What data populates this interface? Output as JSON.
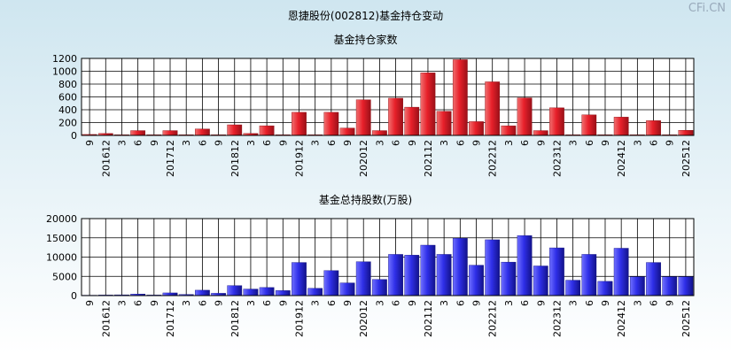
{
  "page_title": "恩捷股份(002812)基金持仓变动",
  "watermark": "CFi.CN",
  "colors": {
    "red_bar": "#e8202a",
    "blue_bar": "#2f2fe8",
    "grid": "#000000"
  },
  "chart_data": [
    {
      "type": "bar",
      "title": "基金持仓家数",
      "ylim": [
        0,
        1200
      ],
      "yticks": [
        0,
        200,
        400,
        600,
        800,
        1000,
        1200
      ],
      "grid": true,
      "categories": [
        "201609",
        "201612",
        "201703",
        "201706",
        "201709",
        "201712",
        "201803",
        "201806",
        "201809",
        "201812",
        "201903",
        "201906",
        "201909",
        "201912",
        "202003",
        "202006",
        "202009",
        "202012",
        "202103",
        "202106",
        "202109",
        "202112",
        "202203",
        "202206",
        "202209",
        "202212",
        "202303",
        "202306",
        "202309",
        "202312",
        "202403",
        "202406",
        "202409",
        "202412",
        "202503",
        "202506",
        "202509",
        "202512"
      ],
      "xtick_labels": [
        "9",
        "201612",
        "3",
        "6",
        "9",
        "201712",
        "3",
        "6",
        "9",
        "201812",
        "3",
        "6",
        "9",
        "201912",
        "3",
        "6",
        "9",
        "202012",
        "3",
        "6",
        "9",
        "202112",
        "3",
        "6",
        "9",
        "202212",
        "3",
        "6",
        "9",
        "202312",
        "3",
        "6",
        "9",
        "202412",
        "3",
        "6",
        "9",
        "202512"
      ],
      "values": [
        15,
        30,
        10,
        75,
        10,
        75,
        10,
        100,
        10,
        165,
        30,
        150,
        10,
        360,
        10,
        360,
        115,
        555,
        75,
        580,
        440,
        975,
        375,
        1180,
        215,
        835,
        150,
        585,
        75,
        430,
        10,
        320,
        10,
        285,
        10,
        230,
        10,
        80
      ]
    },
    {
      "type": "bar",
      "title": "基金总持股数(万股)",
      "ylim": [
        0,
        20000
      ],
      "yticks": [
        0,
        5000,
        10000,
        15000,
        20000
      ],
      "grid": true,
      "categories": [
        "201609",
        "201612",
        "201703",
        "201706",
        "201709",
        "201712",
        "201803",
        "201806",
        "201809",
        "201812",
        "201903",
        "201906",
        "201909",
        "201912",
        "202003",
        "202006",
        "202009",
        "202012",
        "202103",
        "202106",
        "202109",
        "202112",
        "202203",
        "202206",
        "202209",
        "202212",
        "202303",
        "202306",
        "202309",
        "202312",
        "202403",
        "202406",
        "202409",
        "202412",
        "202503",
        "202506",
        "202509",
        "202512"
      ],
      "xtick_labels": [
        "9",
        "201612",
        "3",
        "6",
        "9",
        "201712",
        "3",
        "6",
        "9",
        "201812",
        "3",
        "6",
        "9",
        "201912",
        "3",
        "6",
        "9",
        "202012",
        "3",
        "6",
        "9",
        "202112",
        "3",
        "6",
        "9",
        "202212",
        "3",
        "6",
        "9",
        "202312",
        "3",
        "6",
        "9",
        "202412",
        "3",
        "6",
        "9",
        "202512"
      ],
      "values": [
        100,
        150,
        200,
        400,
        150,
        700,
        300,
        1400,
        600,
        2600,
        1700,
        2100,
        1300,
        8600,
        1900,
        6500,
        3300,
        8800,
        4200,
        10700,
        10500,
        13100,
        10700,
        14900,
        7900,
        14500,
        8700,
        15600,
        7700,
        12400,
        4000,
        10700,
        3700,
        12300,
        4900,
        8600,
        4900,
        4900
      ]
    }
  ]
}
